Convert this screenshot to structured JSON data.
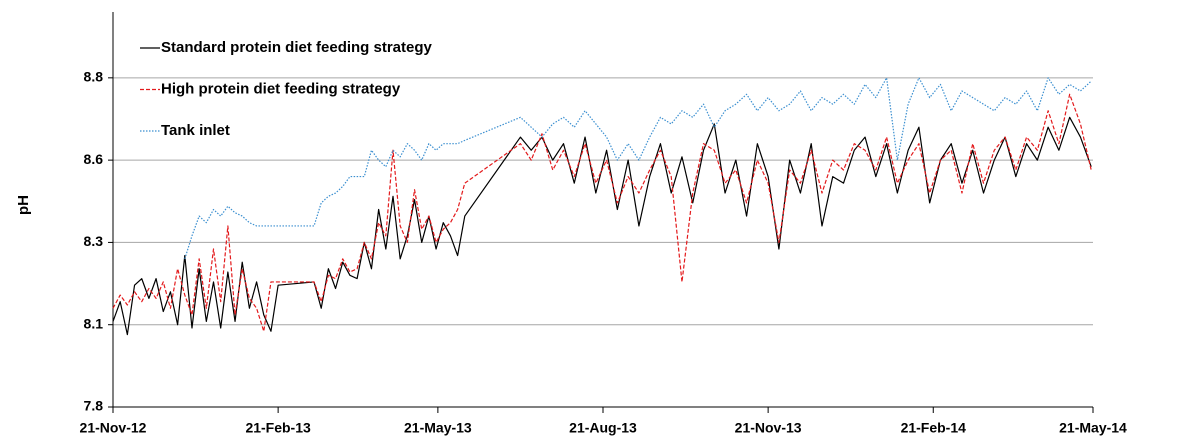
{
  "chart_data": {
    "type": "line",
    "y_label": "pH",
    "x": [
      "2012-11-21",
      "2012-11-25",
      "2012-11-29",
      "2012-12-03",
      "2012-12-07",
      "2012-12-11",
      "2012-12-15",
      "2012-12-19",
      "2012-12-23",
      "2012-12-27",
      "2012-12-31",
      "2013-01-04",
      "2013-01-08",
      "2013-01-12",
      "2013-01-16",
      "2013-01-20",
      "2013-01-24",
      "2013-01-28",
      "2013-02-01",
      "2013-02-05",
      "2013-02-09",
      "2013-02-13",
      "2013-02-17",
      "2013-02-21",
      "2013-03-13",
      "2013-03-17",
      "2013-03-21",
      "2013-03-25",
      "2013-03-29",
      "2013-04-02",
      "2013-04-06",
      "2013-04-10",
      "2013-04-14",
      "2013-04-18",
      "2013-04-22",
      "2013-04-26",
      "2013-04-30",
      "2013-05-04",
      "2013-05-08",
      "2013-05-12",
      "2013-05-16",
      "2013-05-20",
      "2013-05-24",
      "2013-05-28",
      "2013-06-01",
      "2013-06-05",
      "2013-07-06",
      "2013-07-12",
      "2013-07-18",
      "2013-07-24",
      "2013-07-30",
      "2013-08-05",
      "2013-08-11",
      "2013-08-17",
      "2013-08-23",
      "2013-08-29",
      "2013-09-04",
      "2013-09-10",
      "2013-09-16",
      "2013-09-22",
      "2013-09-28",
      "2013-10-04",
      "2013-10-10",
      "2013-10-16",
      "2013-10-22",
      "2013-10-28",
      "2013-11-03",
      "2013-11-09",
      "2013-11-15",
      "2013-11-21",
      "2013-11-27",
      "2013-12-03",
      "2013-12-09",
      "2013-12-15",
      "2013-12-21",
      "2013-12-27",
      "2014-01-02",
      "2014-01-08",
      "2014-01-14",
      "2014-01-20",
      "2014-01-26",
      "2014-02-01",
      "2014-02-07",
      "2014-02-13",
      "2014-02-19",
      "2014-02-25",
      "2014-03-03",
      "2014-03-09",
      "2014-03-15",
      "2014-03-21",
      "2014-03-27",
      "2014-04-02",
      "2014-04-08",
      "2014-04-14",
      "2014-04-20",
      "2014-04-26",
      "2014-05-02",
      "2014-05-08",
      "2014-05-14",
      "2014-05-20"
    ],
    "series": [
      {
        "name": "Standard protein diet feeding strategy",
        "color": "#000000",
        "style": "solid",
        "values": [
          8.06,
          8.12,
          8.02,
          8.17,
          8.19,
          8.13,
          8.19,
          8.09,
          8.15,
          8.05,
          8.26,
          8.04,
          8.22,
          8.06,
          8.18,
          8.04,
          8.21,
          8.06,
          8.24,
          8.1,
          8.18,
          8.08,
          8.03,
          8.17,
          8.18,
          8.1,
          8.22,
          8.16,
          8.24,
          8.2,
          8.19,
          8.3,
          8.22,
          8.4,
          8.28,
          8.44,
          8.25,
          8.32,
          8.43,
          8.3,
          8.38,
          8.28,
          8.36,
          8.32,
          8.26,
          8.38,
          8.62,
          8.58,
          8.62,
          8.55,
          8.6,
          8.48,
          8.62,
          8.45,
          8.58,
          8.4,
          8.55,
          8.35,
          8.5,
          8.6,
          8.45,
          8.56,
          8.42,
          8.58,
          8.66,
          8.45,
          8.55,
          8.38,
          8.6,
          8.5,
          8.28,
          8.55,
          8.45,
          8.6,
          8.35,
          8.5,
          8.48,
          8.58,
          8.62,
          8.5,
          8.6,
          8.45,
          8.58,
          8.65,
          8.42,
          8.55,
          8.6,
          8.48,
          8.58,
          8.45,
          8.55,
          8.62,
          8.5,
          8.6,
          8.55,
          8.65,
          8.58,
          8.68,
          8.62,
          8.53
        ]
      },
      {
        "name": "High protein diet feeding strategy",
        "color": "#e31a1c",
        "style": "dashed",
        "values": [
          8.1,
          8.14,
          8.11,
          8.15,
          8.12,
          8.16,
          8.13,
          8.18,
          8.1,
          8.22,
          8.14,
          8.08,
          8.25,
          8.1,
          8.28,
          8.12,
          8.35,
          8.08,
          8.22,
          8.13,
          8.1,
          8.03,
          8.18,
          8.18,
          8.18,
          8.12,
          8.2,
          8.19,
          8.25,
          8.21,
          8.22,
          8.3,
          8.25,
          8.36,
          8.32,
          8.58,
          8.35,
          8.3,
          8.46,
          8.34,
          8.38,
          8.3,
          8.34,
          8.36,
          8.4,
          8.48,
          8.6,
          8.55,
          8.63,
          8.52,
          8.58,
          8.5,
          8.6,
          8.48,
          8.55,
          8.42,
          8.5,
          8.45,
          8.52,
          8.58,
          8.5,
          8.18,
          8.45,
          8.6,
          8.58,
          8.48,
          8.52,
          8.42,
          8.55,
          8.48,
          8.3,
          8.52,
          8.48,
          8.58,
          8.45,
          8.55,
          8.52,
          8.6,
          8.58,
          8.52,
          8.62,
          8.48,
          8.55,
          8.6,
          8.45,
          8.55,
          8.58,
          8.45,
          8.6,
          8.48,
          8.58,
          8.62,
          8.52,
          8.62,
          8.58,
          8.7,
          8.6,
          8.75,
          8.66,
          8.52
        ]
      },
      {
        "name": "Tank inlet",
        "color": "#3b8fd0",
        "style": "dotted",
        "values": [
          null,
          null,
          null,
          null,
          null,
          null,
          null,
          null,
          null,
          null,
          8.25,
          8.32,
          8.38,
          8.36,
          8.4,
          8.38,
          8.41,
          8.39,
          8.38,
          8.36,
          8.35,
          8.35,
          8.35,
          8.35,
          8.35,
          8.42,
          8.44,
          8.45,
          8.47,
          8.5,
          8.5,
          8.5,
          8.58,
          8.55,
          8.53,
          8.58,
          8.56,
          8.6,
          8.58,
          8.55,
          8.6,
          8.58,
          8.6,
          8.6,
          8.6,
          8.61,
          8.68,
          8.65,
          8.62,
          8.66,
          8.68,
          8.65,
          8.7,
          8.66,
          8.62,
          8.55,
          8.6,
          8.55,
          8.62,
          8.68,
          8.66,
          8.7,
          8.68,
          8.72,
          8.65,
          8.7,
          8.72,
          8.75,
          8.7,
          8.74,
          8.7,
          8.72,
          8.76,
          8.7,
          8.74,
          8.72,
          8.75,
          8.72,
          8.78,
          8.74,
          8.8,
          8.55,
          8.72,
          8.8,
          8.74,
          8.78,
          8.7,
          8.76,
          8.74,
          8.72,
          8.7,
          8.74,
          8.72,
          8.76,
          8.7,
          8.8,
          8.75,
          8.78,
          8.76,
          8.79
        ]
      }
    ],
    "xlim": [
      "2012-11-21",
      "2014-05-21"
    ],
    "xticks": [
      {
        "value": "2012-11-21",
        "label": "21-Nov-12"
      },
      {
        "value": "2013-02-21",
        "label": "21-Feb-13"
      },
      {
        "value": "2013-05-21",
        "label": "21-May-13"
      },
      {
        "value": "2013-08-21",
        "label": "21-Aug-13"
      },
      {
        "value": "2013-11-21",
        "label": "21-Nov-13"
      },
      {
        "value": "2014-02-21",
        "label": "21-Feb-14"
      },
      {
        "value": "2014-05-21",
        "label": "21-May-14"
      }
    ],
    "ylim": [
      7.8,
      9.0
    ],
    "yticks": [
      7.8,
      {
        "value": 8.05,
        "label": "8.1"
      },
      8.3,
      {
        "value": 8.55,
        "label": "8.6"
      },
      8.8
    ],
    "grid": true,
    "legend": "top-left"
  }
}
